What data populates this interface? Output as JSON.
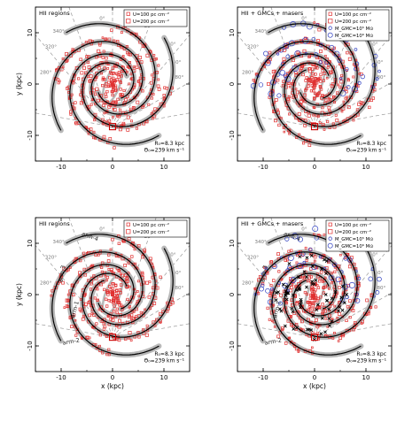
{
  "figure": {
    "description_free": true
  },
  "chart_data": [
    {
      "type": "scatter",
      "panel": "top-left",
      "label": "HII regions",
      "xlabel": "",
      "ylabel": "y (kpc)",
      "xlim": [
        -15,
        15
      ],
      "ylim": [
        -15,
        15
      ],
      "xticks": [
        "-10",
        "0",
        "10"
      ],
      "yticks": [
        "-10",
        "0",
        "10"
      ],
      "legend_position": "top-right",
      "legend": [
        "U=100 pc cm⁻²",
        "U=200 pc cm⁻²"
      ],
      "annotations": [
        "R₀=8.3 kpc",
        "Θ₀=239 km s⁻¹"
      ],
      "longitudes": [
        "280°",
        "320°",
        "340°",
        "0°",
        "20°",
        "40°",
        "60°",
        "80°"
      ],
      "show_arm_labels": false,
      "overlays": [
        "hii"
      ]
    },
    {
      "type": "scatter",
      "panel": "top-right",
      "label": "HII + GMCs + masers",
      "xlabel": "",
      "ylabel": "",
      "xlim": [
        -15,
        15
      ],
      "ylim": [
        -15,
        15
      ],
      "xticks": [
        "-10",
        "0",
        "10"
      ],
      "yticks": [
        "-10",
        "0",
        "10"
      ],
      "legend_position": "top-right",
      "legend": [
        "U=100 pc cm⁻²",
        "U=200 pc cm⁻²",
        "M_GMC=10⁵ M⊙",
        "M_GMC=10⁶ M⊙"
      ],
      "annotations": [
        "R₀=8.3 kpc",
        "Θ₀=239 km s⁻¹"
      ],
      "longitudes": [
        "280°",
        "320°",
        "340°",
        "0°",
        "20°",
        "40°",
        "60°",
        "80°"
      ],
      "show_arm_labels": false,
      "overlays": [
        "hii",
        "gmc"
      ]
    },
    {
      "type": "scatter",
      "panel": "bottom-left",
      "label": "HII regions",
      "xlabel": "x (kpc)",
      "ylabel": "y (kpc)",
      "xlim": [
        -15,
        15
      ],
      "ylim": [
        -15,
        15
      ],
      "xticks": [
        "-10",
        "0",
        "10"
      ],
      "yticks": [
        "-10",
        "0",
        "10"
      ],
      "legend_position": "top-right",
      "legend": [
        "U=100 pc cm⁻²",
        "U=200 pc cm⁻²"
      ],
      "annotations": [
        "R₀=8.3 kpc",
        "Θ₀=239 km s⁻¹"
      ],
      "longitudes": [
        "280°",
        "320°",
        "340°",
        "0°",
        "20°",
        "40°",
        "60°",
        "80°"
      ],
      "arm_labels": [
        "arm-1",
        "arm-2",
        "arm-3",
        "arm-4"
      ],
      "show_arm_labels": true,
      "overlays": [
        "hii"
      ]
    },
    {
      "type": "scatter",
      "panel": "bottom-right",
      "label": "HII + GMCs + masers",
      "xlabel": "x (kpc)",
      "ylabel": "",
      "xlim": [
        -15,
        15
      ],
      "ylim": [
        -15,
        15
      ],
      "xticks": [
        "-10",
        "0",
        "10"
      ],
      "yticks": [
        "-10",
        "0",
        "10"
      ],
      "legend_position": "top-right",
      "legend": [
        "U=100 pc cm⁻²",
        "U=200 pc cm⁻²",
        "M_GMC=10⁵ M⊙",
        "M_GMC=10⁶ M⊙"
      ],
      "annotations": [
        "R₀=8.3 kpc",
        "Θ₀=239 km s⁻¹"
      ],
      "longitudes": [
        "280°",
        "320°",
        "340°",
        "0°",
        "20°",
        "40°",
        "60°",
        "80°"
      ],
      "arm_labels": [
        "arm-1",
        "arm-2",
        "arm-3",
        "arm-4"
      ],
      "show_arm_labels": true,
      "overlays": [
        "hii",
        "gmc",
        "maser"
      ]
    }
  ],
  "spiral_model": {
    "arms": [
      {
        "r0": 3.2,
        "phi0_deg": 30,
        "pitch_deg": 12.5
      },
      {
        "r0": 3.2,
        "phi0_deg": 120,
        "pitch_deg": 12.5
      },
      {
        "r0": 3.2,
        "phi0_deg": 210,
        "pitch_deg": 12.5
      },
      {
        "r0": 3.2,
        "phi0_deg": 300,
        "pitch_deg": 12.5
      }
    ],
    "r_max_kpc": 13.5,
    "sun_position_kpc": [
      0,
      -8.3
    ],
    "bar": {
      "half_length_kpc": 4.0,
      "width_kpc": 1.4,
      "angle_deg": 70
    }
  },
  "colors": {
    "hii": "#e03030",
    "gmc": "#3040c0",
    "maser": "#000000",
    "arm_band": "#b8b8b8",
    "arm_line": "#000000",
    "longitude_lines": "#9a9a9a",
    "sun_marker": "#cc0000"
  }
}
